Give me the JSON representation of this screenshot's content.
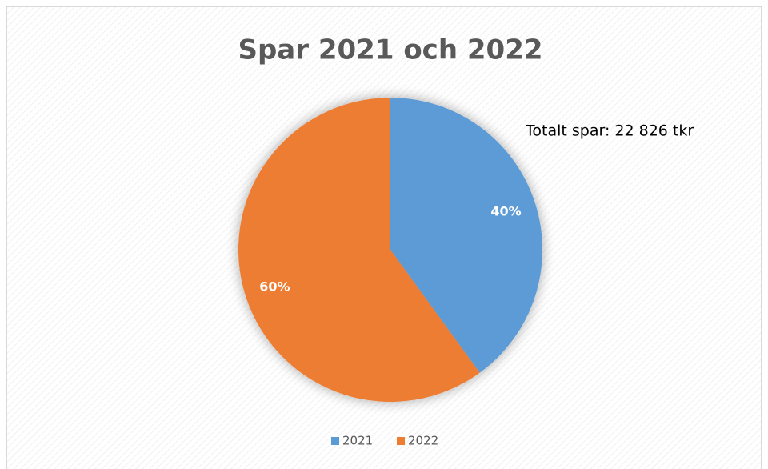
{
  "chart_data": {
    "type": "pie",
    "title": "Spar 2021 och 2022",
    "annotation": "Totalt spar: 22 826 tkr",
    "categories": [
      "2021",
      "2022"
    ],
    "values": [
      40,
      60
    ],
    "value_labels": [
      "40%",
      "60%"
    ],
    "colors": [
      "#5b9bd5",
      "#ed7d31"
    ],
    "legend": "bottom"
  }
}
